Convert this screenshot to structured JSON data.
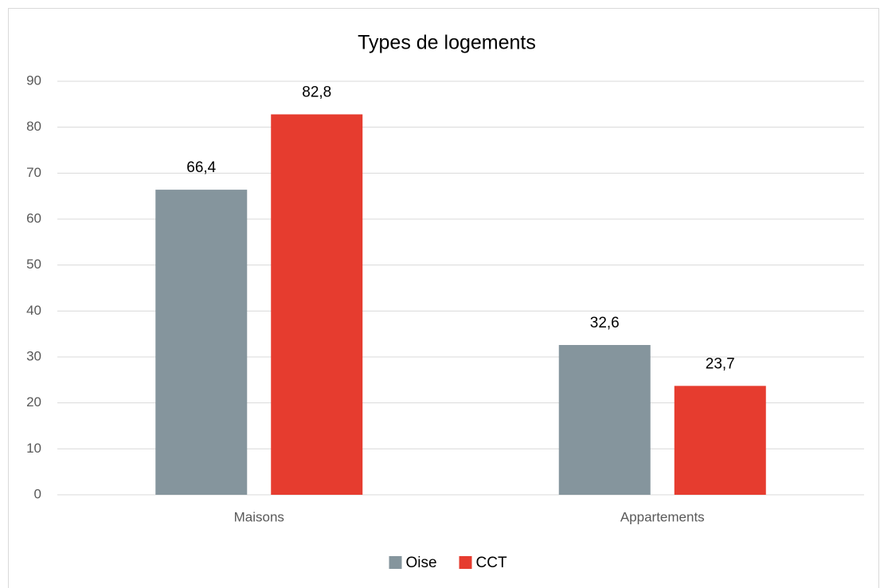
{
  "chart_data": {
    "type": "bar",
    "title": "Types de logements",
    "categories": [
      "Maisons",
      "Appartements"
    ],
    "series": [
      {
        "name": "Oise",
        "color": "#85959d",
        "values": [
          66.4,
          32.6
        ],
        "value_labels": [
          "66,4",
          "32,6"
        ]
      },
      {
        "name": "CCT",
        "color": "#e63c2f",
        "values": [
          82.8,
          23.7
        ],
        "value_labels": [
          "82,8",
          "23,7"
        ]
      }
    ],
    "ylim": [
      0,
      90
    ],
    "yticks": [
      0,
      10,
      20,
      30,
      40,
      50,
      60,
      70,
      80,
      90
    ],
    "grid": true,
    "legend": "bottom"
  }
}
